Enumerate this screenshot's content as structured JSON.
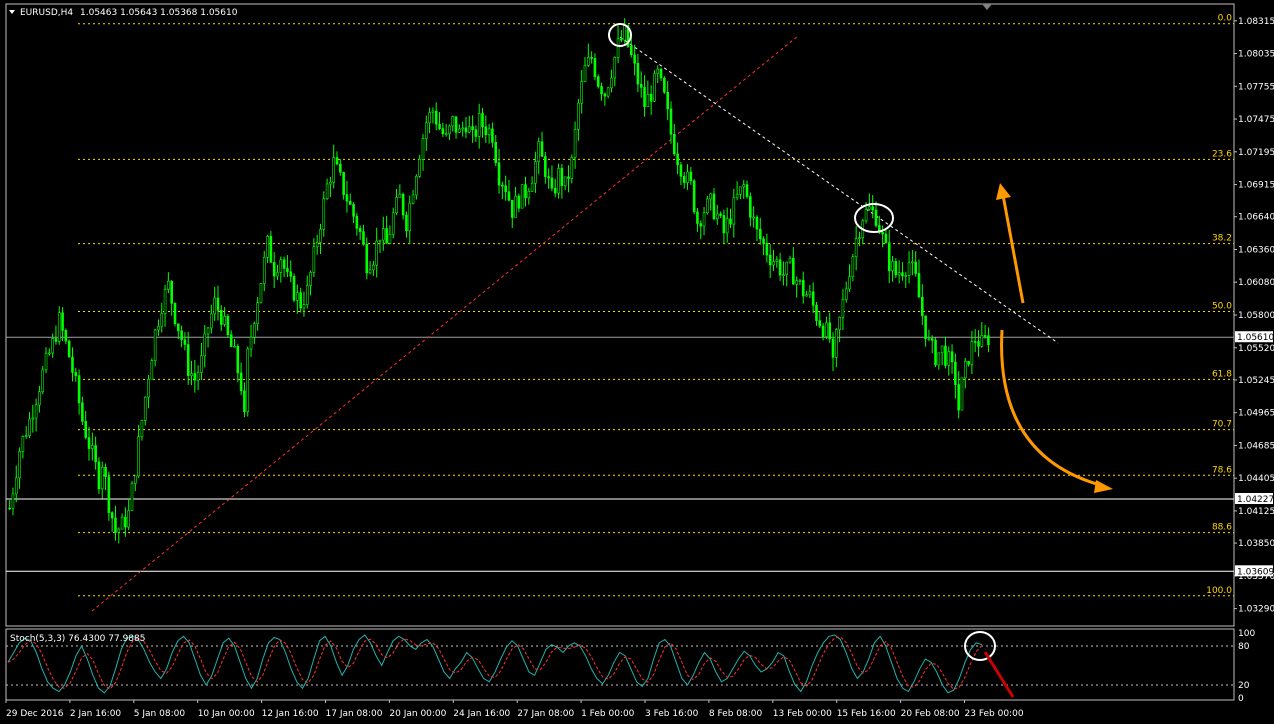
{
  "header": {
    "symbol": "EURUSD,H4",
    "ohlc": "1.05463 1.05643 1.05368 1.05610"
  },
  "stoch_header": "Stoch(5,3,3) 76.4300 77.9885",
  "colors": {
    "background": "#000000",
    "candle": "#00ff00",
    "fib": "#ffd700",
    "trendline_up": "#ff3030",
    "trendline_down": "#ffffff",
    "arrows": "#ff9900",
    "stoch_main": "#20b2aa",
    "stoch_signal": "#ff3030",
    "hline": "#c0c0c0",
    "grid_axis_text": "#ffffff"
  },
  "chart_data": {
    "type": "candlestick",
    "symbol": "EURUSD",
    "timeframe": "H4",
    "ylim": [
      1.0315,
      1.0845
    ],
    "y_ticks": [
      "1.08315",
      "1.08035",
      "1.07755",
      "1.07475",
      "1.07195",
      "1.06915",
      "1.06640",
      "1.06360",
      "1.06080",
      "1.05800",
      "1.05520",
      "1.05245",
      "1.04965",
      "1.04685",
      "1.04405",
      "1.04125",
      "1.03850",
      "1.03570",
      "1.03290"
    ],
    "x_ticks": [
      "29 Dec 2016",
      "2 Jan 16:00",
      "5 Jan 08:00",
      "10 Jan 00:00",
      "12 Jan 16:00",
      "17 Jan 08:00",
      "20 Jan 00:00",
      "24 Jan 16:00",
      "27 Jan 08:00",
      "1 Feb 00:00",
      "3 Feb 16:00",
      "8 Feb 08:00",
      "13 Feb 00:00",
      "15 Feb 16:00",
      "20 Feb 08:00",
      "23 Feb 00:00"
    ],
    "current_price": "1.05610",
    "horizontal_lines": [
      "1.04227",
      "1.03609"
    ],
    "fibonacci": [
      {
        "level": "0.0",
        "price": 1.0829
      },
      {
        "level": "23.6",
        "price": 1.0713
      },
      {
        "level": "38.2",
        "price": 1.0641
      },
      {
        "level": "50.0",
        "price": 1.0583
      },
      {
        "level": "61.8",
        "price": 1.0525
      },
      {
        "level": "70.7",
        "price": 1.0482
      },
      {
        "level": "78.6",
        "price": 1.0443
      },
      {
        "level": "88.6",
        "price": 1.0394
      },
      {
        "level": "100.0",
        "price": 1.034
      }
    ],
    "close_path": [
      [
        0,
        1.0415
      ],
      [
        3,
        1.0465
      ],
      [
        6,
        1.049
      ],
      [
        10,
        1.053
      ],
      [
        13,
        1.0555
      ],
      [
        15,
        1.0575
      ],
      [
        18,
        1.0545
      ],
      [
        20,
        1.052
      ],
      [
        22,
        1.049
      ],
      [
        25,
        1.046
      ],
      [
        27,
        1.044
      ],
      [
        28,
        1.0455
      ],
      [
        30,
        1.042
      ],
      [
        32,
        1.0395
      ],
      [
        34,
        1.04
      ],
      [
        36,
        1.041
      ],
      [
        38,
        1.045
      ],
      [
        40,
        1.049
      ],
      [
        42,
        1.053
      ],
      [
        44,
        1.0565
      ],
      [
        46,
        1.059
      ],
      [
        48,
        1.0605
      ],
      [
        50,
        1.058
      ],
      [
        52,
        1.056
      ],
      [
        54,
        1.0535
      ],
      [
        56,
        1.0525
      ],
      [
        58,
        1.054
      ],
      [
        60,
        1.057
      ],
      [
        62,
        1.059
      ],
      [
        64,
        1.058
      ],
      [
        66,
        1.056
      ],
      [
        68,
        1.0545
      ],
      [
        70,
        1.052
      ],
      [
        71,
        1.049
      ],
      [
        72,
        1.0545
      ],
      [
        74,
        1.058
      ],
      [
        76,
        1.061
      ],
      [
        78,
        1.064
      ],
      [
        80,
        1.062
      ],
      [
        82,
        1.063
      ],
      [
        84,
        1.061
      ],
      [
        86,
        1.06
      ],
      [
        88,
        1.059
      ],
      [
        90,
        1.06
      ],
      [
        92,
        1.063
      ],
      [
        94,
        1.066
      ],
      [
        96,
        1.069
      ],
      [
        98,
        1.071
      ],
      [
        100,
        1.0695
      ],
      [
        102,
        1.068
      ],
      [
        104,
        1.0665
      ],
      [
        106,
        1.065
      ],
      [
        108,
        1.0625
      ],
      [
        110,
        1.063
      ],
      [
        112,
        1.065
      ],
      [
        114,
        1.064
      ],
      [
        116,
        1.0665
      ],
      [
        118,
        1.068
      ],
      [
        120,
        1.066
      ],
      [
        122,
        1.069
      ],
      [
        124,
        1.072
      ],
      [
        126,
        1.0745
      ],
      [
        128,
        1.0755
      ],
      [
        130,
        1.074
      ],
      [
        132,
        1.073
      ],
      [
        134,
        1.0745
      ],
      [
        136,
        1.0735
      ],
      [
        138,
        1.0745
      ],
      [
        140,
        1.073
      ],
      [
        142,
        1.0745
      ],
      [
        144,
        1.074
      ],
      [
        146,
        1.0735
      ],
      [
        148,
        1.07
      ],
      [
        150,
        1.069
      ],
      [
        152,
        1.067
      ],
      [
        154,
        1.068
      ],
      [
        156,
        1.0685
      ],
      [
        158,
        1.07
      ],
      [
        160,
        1.072
      ],
      [
        162,
        1.0705
      ],
      [
        164,
        1.068
      ],
      [
        166,
        1.07
      ],
      [
        168,
        1.069
      ],
      [
        170,
        1.071
      ],
      [
        172,
        1.076
      ],
      [
        174,
        1.079
      ],
      [
        176,
        1.08
      ],
      [
        178,
        1.078
      ],
      [
        180,
        1.077
      ],
      [
        182,
        1.079
      ],
      [
        184,
        1.081
      ],
      [
        186,
        1.082
      ],
      [
        188,
        1.08
      ],
      [
        190,
        1.078
      ],
      [
        192,
        1.076
      ],
      [
        194,
        1.077
      ],
      [
        196,
        1.0785
      ],
      [
        198,
        1.0765
      ],
      [
        200,
        1.0735
      ],
      [
        202,
        1.0715
      ],
      [
        204,
        1.07
      ],
      [
        206,
        1.069
      ],
      [
        208,
        1.066
      ],
      [
        210,
        1.067
      ],
      [
        212,
        1.0675
      ],
      [
        214,
        1.0665
      ],
      [
        216,
        1.065
      ],
      [
        218,
        1.0665
      ],
      [
        220,
        1.068
      ],
      [
        222,
        1.069
      ],
      [
        224,
        1.067
      ],
      [
        226,
        1.065
      ],
      [
        228,
        1.064
      ],
      [
        230,
        1.063
      ],
      [
        232,
        1.0625
      ],
      [
        234,
        1.0615
      ],
      [
        236,
        1.062
      ],
      [
        238,
        1.061
      ],
      [
        240,
        1.06
      ],
      [
        242,
        1.0595
      ],
      [
        244,
        1.058
      ],
      [
        246,
        1.057
      ],
      [
        248,
        1.056
      ],
      [
        249,
        1.0535
      ],
      [
        250,
        1.056
      ],
      [
        252,
        1.059
      ],
      [
        254,
        1.062
      ],
      [
        256,
        1.0645
      ],
      [
        258,
        1.0665
      ],
      [
        260,
        1.067
      ],
      [
        262,
        1.0665
      ],
      [
        264,
        1.0645
      ],
      [
        266,
        1.0625
      ],
      [
        268,
        1.0615
      ],
      [
        270,
        1.062
      ],
      [
        272,
        1.0625
      ],
      [
        274,
        1.061
      ],
      [
        276,
        1.058
      ],
      [
        278,
        1.0555
      ],
      [
        280,
        1.0545
      ],
      [
        282,
        1.055
      ],
      [
        284,
        1.054
      ],
      [
        286,
        1.0525
      ],
      [
        287,
        1.05
      ],
      [
        288,
        1.052
      ],
      [
        290,
        1.0545
      ],
      [
        292,
        1.056
      ],
      [
        294,
        1.0555
      ],
      [
        296,
        1.0561
      ]
    ],
    "stochastic": {
      "k": 5,
      "d": 3,
      "slowing": 3,
      "main": 76.43,
      "signal": 77.9885,
      "levels": [
        80,
        20
      ],
      "ylim": [
        0,
        100
      ],
      "axis_labels": [
        "100",
        "80",
        "20",
        "0"
      ],
      "series_main": [
        55,
        70,
        85,
        92,
        88,
        70,
        45,
        25,
        15,
        10,
        20,
        40,
        65,
        80,
        60,
        35,
        15,
        8,
        18,
        45,
        75,
        92,
        95,
        90,
        75,
        55,
        40,
        30,
        45,
        70,
        88,
        95,
        85,
        60,
        35,
        20,
        35,
        60,
        85,
        92,
        80,
        55,
        30,
        15,
        30,
        60,
        85,
        93,
        90,
        70,
        45,
        25,
        15,
        30,
        60,
        88,
        95,
        80,
        55,
        35,
        50,
        75,
        90,
        97,
        85,
        65,
        50,
        70,
        88,
        95,
        90,
        80,
        75,
        85,
        90,
        80,
        60,
        40,
        30,
        45,
        55,
        70,
        62,
        45,
        30,
        25,
        40,
        60,
        78,
        88,
        80,
        60,
        40,
        35,
        55,
        75,
        82,
        78,
        70,
        80,
        85,
        80,
        65,
        45,
        30,
        22,
        35,
        55,
        70,
        65,
        45,
        25,
        18,
        30,
        60,
        85,
        90,
        80,
        55,
        30,
        20,
        35,
        55,
        70,
        60,
        40,
        25,
        30,
        45,
        60,
        72,
        65,
        50,
        40,
        45,
        55,
        70,
        65,
        40,
        20,
        10,
        25,
        50,
        70,
        85,
        95,
        97,
        90,
        70,
        45,
        30,
        40,
        60,
        85,
        95,
        80,
        55,
        30,
        15,
        10,
        25,
        45,
        60,
        55,
        40,
        20,
        8,
        12,
        30,
        55,
        75,
        85,
        82
      ]
    }
  }
}
